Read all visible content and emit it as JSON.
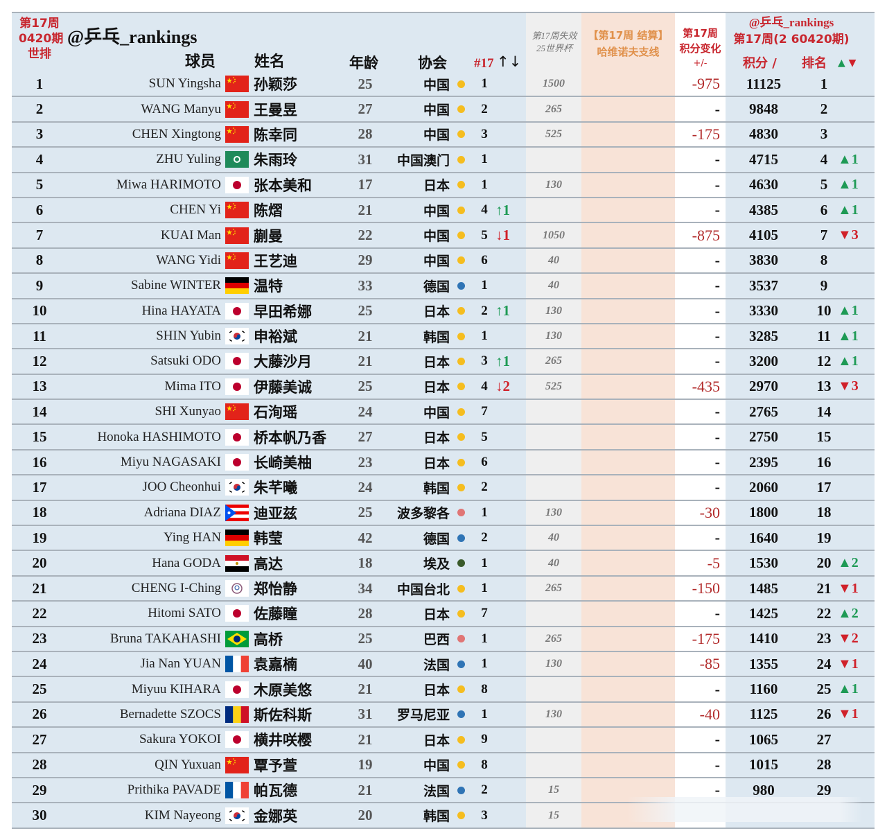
{
  "header": {
    "week_label_line1": "第17周",
    "week_label_line2": "0420期",
    "week_label_line3": "世排",
    "brand": "@乒乓_rankings",
    "col_player": "球员",
    "col_name": "姓名",
    "col_age": "年龄",
    "col_assoc": "协会",
    "col_nat_rank": "#17",
    "col_nat_arrows": "↑↓",
    "col_lost_line1": "第17周失效",
    "col_lost_line2": "25世界杯",
    "col_settle_line1": "【第17周 结算】",
    "col_settle_line2": "哈维诺夫支线",
    "col_change_line1": "第17周",
    "col_change_line2": "积分变化",
    "col_change_line3": "+/-",
    "col_rank_brand": "@乒乓_rankings",
    "col_rank_period": "第17周(2 60420期)",
    "col_points": "积分 /",
    "col_rank": "排名",
    "col_rank_arrows_up": "▲",
    "col_rank_arrows_down": "▼"
  },
  "colors": {
    "main_bg": "#dde8f1",
    "lost_bg": "#efefef",
    "settle_bg": "#f8e3d7",
    "header_red": "#c8262e",
    "header_orange": "#e0904a",
    "up_green": "#1e9a55",
    "down_red": "#d0212a",
    "dot_yellow": "#f5bd1f",
    "dot_blue": "#2f74b5",
    "dot_pink": "#e07575",
    "dot_darkgreen": "#3a5a2a"
  },
  "rows": [
    {
      "rank": "1",
      "en": "SUN Yingsha",
      "flag": "china",
      "cn": "孙颖莎",
      "age": "25",
      "assoc": "中国",
      "dot": "yellow",
      "nat": "1",
      "natchg": "",
      "natdir": "",
      "lost": "1500",
      "change": "-975",
      "points": "11125",
      "wr": "1",
      "wrchg": "",
      "wrdir": ""
    },
    {
      "rank": "2",
      "en": "WANG Manyu",
      "flag": "china",
      "cn": "王曼昱",
      "age": "27",
      "assoc": "中国",
      "dot": "yellow",
      "nat": "2",
      "natchg": "",
      "natdir": "",
      "lost": "265",
      "change": "-",
      "points": "9848",
      "wr": "2",
      "wrchg": "",
      "wrdir": ""
    },
    {
      "rank": "3",
      "en": "CHEN Xingtong",
      "flag": "china",
      "cn": "陈幸同",
      "age": "28",
      "assoc": "中国",
      "dot": "yellow",
      "nat": "3",
      "natchg": "",
      "natdir": "",
      "lost": "525",
      "change": "-175",
      "points": "4830",
      "wr": "3",
      "wrchg": "",
      "wrdir": ""
    },
    {
      "rank": "4",
      "en": "ZHU Yuling",
      "flag": "macau",
      "cn": "朱雨玲",
      "age": "31",
      "assoc": "中国澳门",
      "dot": "yellow",
      "nat": "1",
      "natchg": "",
      "natdir": "",
      "lost": "",
      "change": "-",
      "points": "4715",
      "wr": "4",
      "wrchg": "▲1",
      "wrdir": "up"
    },
    {
      "rank": "5",
      "en": "Miwa HARIMOTO",
      "flag": "japan",
      "cn": "张本美和",
      "age": "17",
      "assoc": "日本",
      "dot": "yellow",
      "nat": "1",
      "natchg": "",
      "natdir": "",
      "lost": "130",
      "change": "-",
      "points": "4630",
      "wr": "5",
      "wrchg": "▲1",
      "wrdir": "up"
    },
    {
      "rank": "6",
      "en": "CHEN Yi",
      "flag": "china",
      "cn": "陈熠",
      "age": "21",
      "assoc": "中国",
      "dot": "yellow",
      "nat": "4",
      "natchg": "↑1",
      "natdir": "up",
      "lost": "",
      "change": "-",
      "points": "4385",
      "wr": "6",
      "wrchg": "▲1",
      "wrdir": "up"
    },
    {
      "rank": "7",
      "en": "KUAI Man",
      "flag": "china",
      "cn": "蒯曼",
      "age": "22",
      "assoc": "中国",
      "dot": "yellow",
      "nat": "5",
      "natchg": "↓1",
      "natdir": "down",
      "lost": "1050",
      "change": "-875",
      "points": "4105",
      "wr": "7",
      "wrchg": "▼3",
      "wrdir": "down"
    },
    {
      "rank": "8",
      "en": "WANG Yidi",
      "flag": "china",
      "cn": "王艺迪",
      "age": "29",
      "assoc": "中国",
      "dot": "yellow",
      "nat": "6",
      "natchg": "",
      "natdir": "",
      "lost": "40",
      "change": "-",
      "points": "3830",
      "wr": "8",
      "wrchg": "",
      "wrdir": ""
    },
    {
      "rank": "9",
      "en": "Sabine WINTER",
      "flag": "germany",
      "cn": "温特",
      "age": "33",
      "assoc": "德国",
      "dot": "blue",
      "nat": "1",
      "natchg": "",
      "natdir": "",
      "lost": "40",
      "change": "-",
      "points": "3537",
      "wr": "9",
      "wrchg": "",
      "wrdir": ""
    },
    {
      "rank": "10",
      "en": "Hina HAYATA",
      "flag": "japan",
      "cn": "早田希娜",
      "age": "25",
      "assoc": "日本",
      "dot": "yellow",
      "nat": "2",
      "natchg": "↑1",
      "natdir": "up",
      "lost": "130",
      "change": "-",
      "points": "3330",
      "wr": "10",
      "wrchg": "▲1",
      "wrdir": "up"
    },
    {
      "rank": "11",
      "en": "SHIN Yubin",
      "flag": "korea",
      "cn": "申裕斌",
      "age": "21",
      "assoc": "韩国",
      "dot": "yellow",
      "nat": "1",
      "natchg": "",
      "natdir": "",
      "lost": "130",
      "change": "-",
      "points": "3285",
      "wr": "11",
      "wrchg": "▲1",
      "wrdir": "up"
    },
    {
      "rank": "12",
      "en": "Satsuki ODO",
      "flag": "japan",
      "cn": "大藤沙月",
      "age": "21",
      "assoc": "日本",
      "dot": "yellow",
      "nat": "3",
      "natchg": "↑1",
      "natdir": "up",
      "lost": "265",
      "change": "-",
      "points": "3200",
      "wr": "12",
      "wrchg": "▲1",
      "wrdir": "up"
    },
    {
      "rank": "13",
      "en": "Mima ITO",
      "flag": "japan",
      "cn": "伊藤美诚",
      "age": "25",
      "assoc": "日本",
      "dot": "yellow",
      "nat": "4",
      "natchg": "↓2",
      "natdir": "down",
      "lost": "525",
      "change": "-435",
      "points": "2970",
      "wr": "13",
      "wrchg": "▼3",
      "wrdir": "down"
    },
    {
      "rank": "14",
      "en": "SHI Xunyao",
      "flag": "china",
      "cn": "石洵瑶",
      "age": "24",
      "assoc": "中国",
      "dot": "yellow",
      "nat": "7",
      "natchg": "",
      "natdir": "",
      "lost": "",
      "change": "-",
      "points": "2765",
      "wr": "14",
      "wrchg": "",
      "wrdir": ""
    },
    {
      "rank": "15",
      "en": "Honoka HASHIMOTO",
      "flag": "japan",
      "cn": "桥本帆乃香",
      "age": "27",
      "assoc": "日本",
      "dot": "yellow",
      "nat": "5",
      "natchg": "",
      "natdir": "",
      "lost": "",
      "change": "-",
      "points": "2750",
      "wr": "15",
      "wrchg": "",
      "wrdir": ""
    },
    {
      "rank": "16",
      "en": "Miyu NAGASAKI",
      "flag": "japan",
      "cn": "长崎美柚",
      "age": "23",
      "assoc": "日本",
      "dot": "yellow",
      "nat": "6",
      "natchg": "",
      "natdir": "",
      "lost": "",
      "change": "-",
      "points": "2395",
      "wr": "16",
      "wrchg": "",
      "wrdir": ""
    },
    {
      "rank": "17",
      "en": "JOO Cheonhui",
      "flag": "korea",
      "cn": "朱芊曦",
      "age": "24",
      "assoc": "韩国",
      "dot": "yellow",
      "nat": "2",
      "natchg": "",
      "natdir": "",
      "lost": "",
      "change": "-",
      "points": "2060",
      "wr": "17",
      "wrchg": "",
      "wrdir": ""
    },
    {
      "rank": "18",
      "en": "Adriana DIAZ",
      "flag": "puertorico",
      "cn": "迪亚兹",
      "age": "25",
      "assoc": "波多黎各",
      "dot": "pink",
      "nat": "1",
      "natchg": "",
      "natdir": "",
      "lost": "130",
      "change": "-30",
      "points": "1800",
      "wr": "18",
      "wrchg": "",
      "wrdir": ""
    },
    {
      "rank": "19",
      "en": "Ying HAN",
      "flag": "germany",
      "cn": "韩莹",
      "age": "42",
      "assoc": "德国",
      "dot": "blue",
      "nat": "2",
      "natchg": "",
      "natdir": "",
      "lost": "40",
      "change": "-",
      "points": "1640",
      "wr": "19",
      "wrchg": "",
      "wrdir": ""
    },
    {
      "rank": "20",
      "en": "Hana GODA",
      "flag": "egypt",
      "cn": "高达",
      "age": "18",
      "assoc": "埃及",
      "dot": "darkgreen",
      "nat": "1",
      "natchg": "",
      "natdir": "",
      "lost": "40",
      "change": "-5",
      "points": "1530",
      "wr": "20",
      "wrchg": "▲2",
      "wrdir": "up"
    },
    {
      "rank": "21",
      "en": "CHENG I-Ching",
      "flag": "taipei",
      "cn": "郑怡静",
      "age": "34",
      "assoc": "中国台北",
      "dot": "yellow",
      "nat": "1",
      "natchg": "",
      "natdir": "",
      "lost": "265",
      "change": "-150",
      "points": "1485",
      "wr": "21",
      "wrchg": "▼1",
      "wrdir": "down"
    },
    {
      "rank": "22",
      "en": "Hitomi SATO",
      "flag": "japan",
      "cn": "佐藤瞳",
      "age": "28",
      "assoc": "日本",
      "dot": "yellow",
      "nat": "7",
      "natchg": "",
      "natdir": "",
      "lost": "",
      "change": "-",
      "points": "1425",
      "wr": "22",
      "wrchg": "▲2",
      "wrdir": "up"
    },
    {
      "rank": "23",
      "en": "Bruna TAKAHASHI",
      "flag": "brazil",
      "cn": "高桥",
      "age": "25",
      "assoc": "巴西",
      "dot": "pink",
      "nat": "1",
      "natchg": "",
      "natdir": "",
      "lost": "265",
      "change": "-175",
      "points": "1410",
      "wr": "23",
      "wrchg": "▼2",
      "wrdir": "down"
    },
    {
      "rank": "24",
      "en": "Jia Nan YUAN",
      "flag": "france",
      "cn": "袁嘉楠",
      "age": "40",
      "assoc": "法国",
      "dot": "blue",
      "nat": "1",
      "natchg": "",
      "natdir": "",
      "lost": "130",
      "change": "-85",
      "points": "1355",
      "wr": "24",
      "wrchg": "▼1",
      "wrdir": "down"
    },
    {
      "rank": "25",
      "en": "Miyuu KIHARA",
      "flag": "japan",
      "cn": "木原美悠",
      "age": "21",
      "assoc": "日本",
      "dot": "yellow",
      "nat": "8",
      "natchg": "",
      "natdir": "",
      "lost": "",
      "change": "-",
      "points": "1160",
      "wr": "25",
      "wrchg": "▲1",
      "wrdir": "up"
    },
    {
      "rank": "26",
      "en": "Bernadette SZOCS",
      "flag": "romania",
      "cn": "斯佐科斯",
      "age": "31",
      "assoc": "罗马尼亚",
      "dot": "blue",
      "nat": "1",
      "natchg": "",
      "natdir": "",
      "lost": "130",
      "change": "-40",
      "points": "1125",
      "wr": "26",
      "wrchg": "▼1",
      "wrdir": "down"
    },
    {
      "rank": "27",
      "en": "Sakura YOKOI",
      "flag": "japan",
      "cn": "横井咲樱",
      "age": "21",
      "assoc": "日本",
      "dot": "yellow",
      "nat": "9",
      "natchg": "",
      "natdir": "",
      "lost": "",
      "change": "-",
      "points": "1065",
      "wr": "27",
      "wrchg": "",
      "wrdir": ""
    },
    {
      "rank": "28",
      "en": "QIN Yuxuan",
      "flag": "china",
      "cn": "覃予萱",
      "age": "19",
      "assoc": "中国",
      "dot": "yellow",
      "nat": "8",
      "natchg": "",
      "natdir": "",
      "lost": "",
      "change": "-",
      "points": "1015",
      "wr": "28",
      "wrchg": "",
      "wrdir": ""
    },
    {
      "rank": "29",
      "en": "Prithika PAVADE",
      "flag": "france",
      "cn": "帕瓦德",
      "age": "21",
      "assoc": "法国",
      "dot": "blue",
      "nat": "2",
      "natchg": "",
      "natdir": "",
      "lost": "15",
      "change": "-",
      "points": "980",
      "wr": "29",
      "wrchg": "",
      "wrdir": ""
    },
    {
      "rank": "30",
      "en": "KIM Nayeong",
      "flag": "korea",
      "cn": "金娜英",
      "age": "20",
      "assoc": "韩国",
      "dot": "yellow",
      "nat": "3",
      "natchg": "",
      "natdir": "",
      "lost": "15",
      "change": "",
      "points": "",
      "wr": "",
      "wrchg": "",
      "wrdir": ""
    }
  ]
}
